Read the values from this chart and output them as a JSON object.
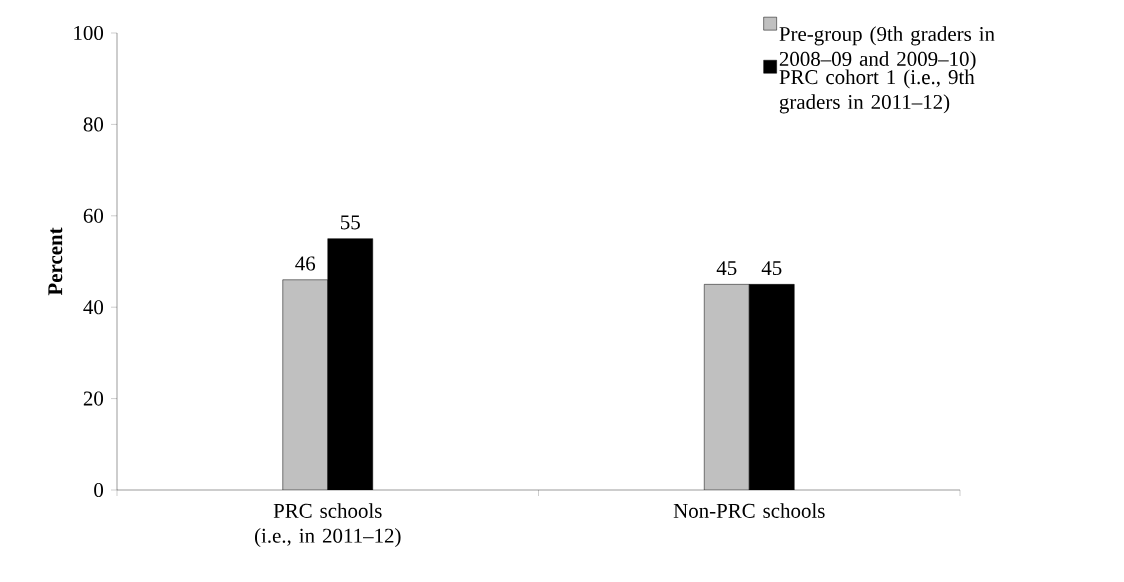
{
  "chart_data": {
    "type": "bar",
    "ylabel": "Percent",
    "categories": [
      "PRC schools (i.e., in 2011–12)",
      "Non-PRC schools"
    ],
    "series": [
      {
        "name": "Pre-group (9th graders in 2008–09 and 2009–10)",
        "color": "#c0c0c0",
        "values": [
          46,
          45
        ]
      },
      {
        "name": "PRC cohort 1 (i.e., 9th graders in 2011–12)",
        "color": "#000000",
        "values": [
          55,
          45
        ]
      }
    ],
    "ylim": [
      0,
      100
    ],
    "yticks": [
      0,
      20,
      40,
      60,
      80,
      100
    ],
    "data_labels": true,
    "grid": false,
    "legend": "top right"
  }
}
